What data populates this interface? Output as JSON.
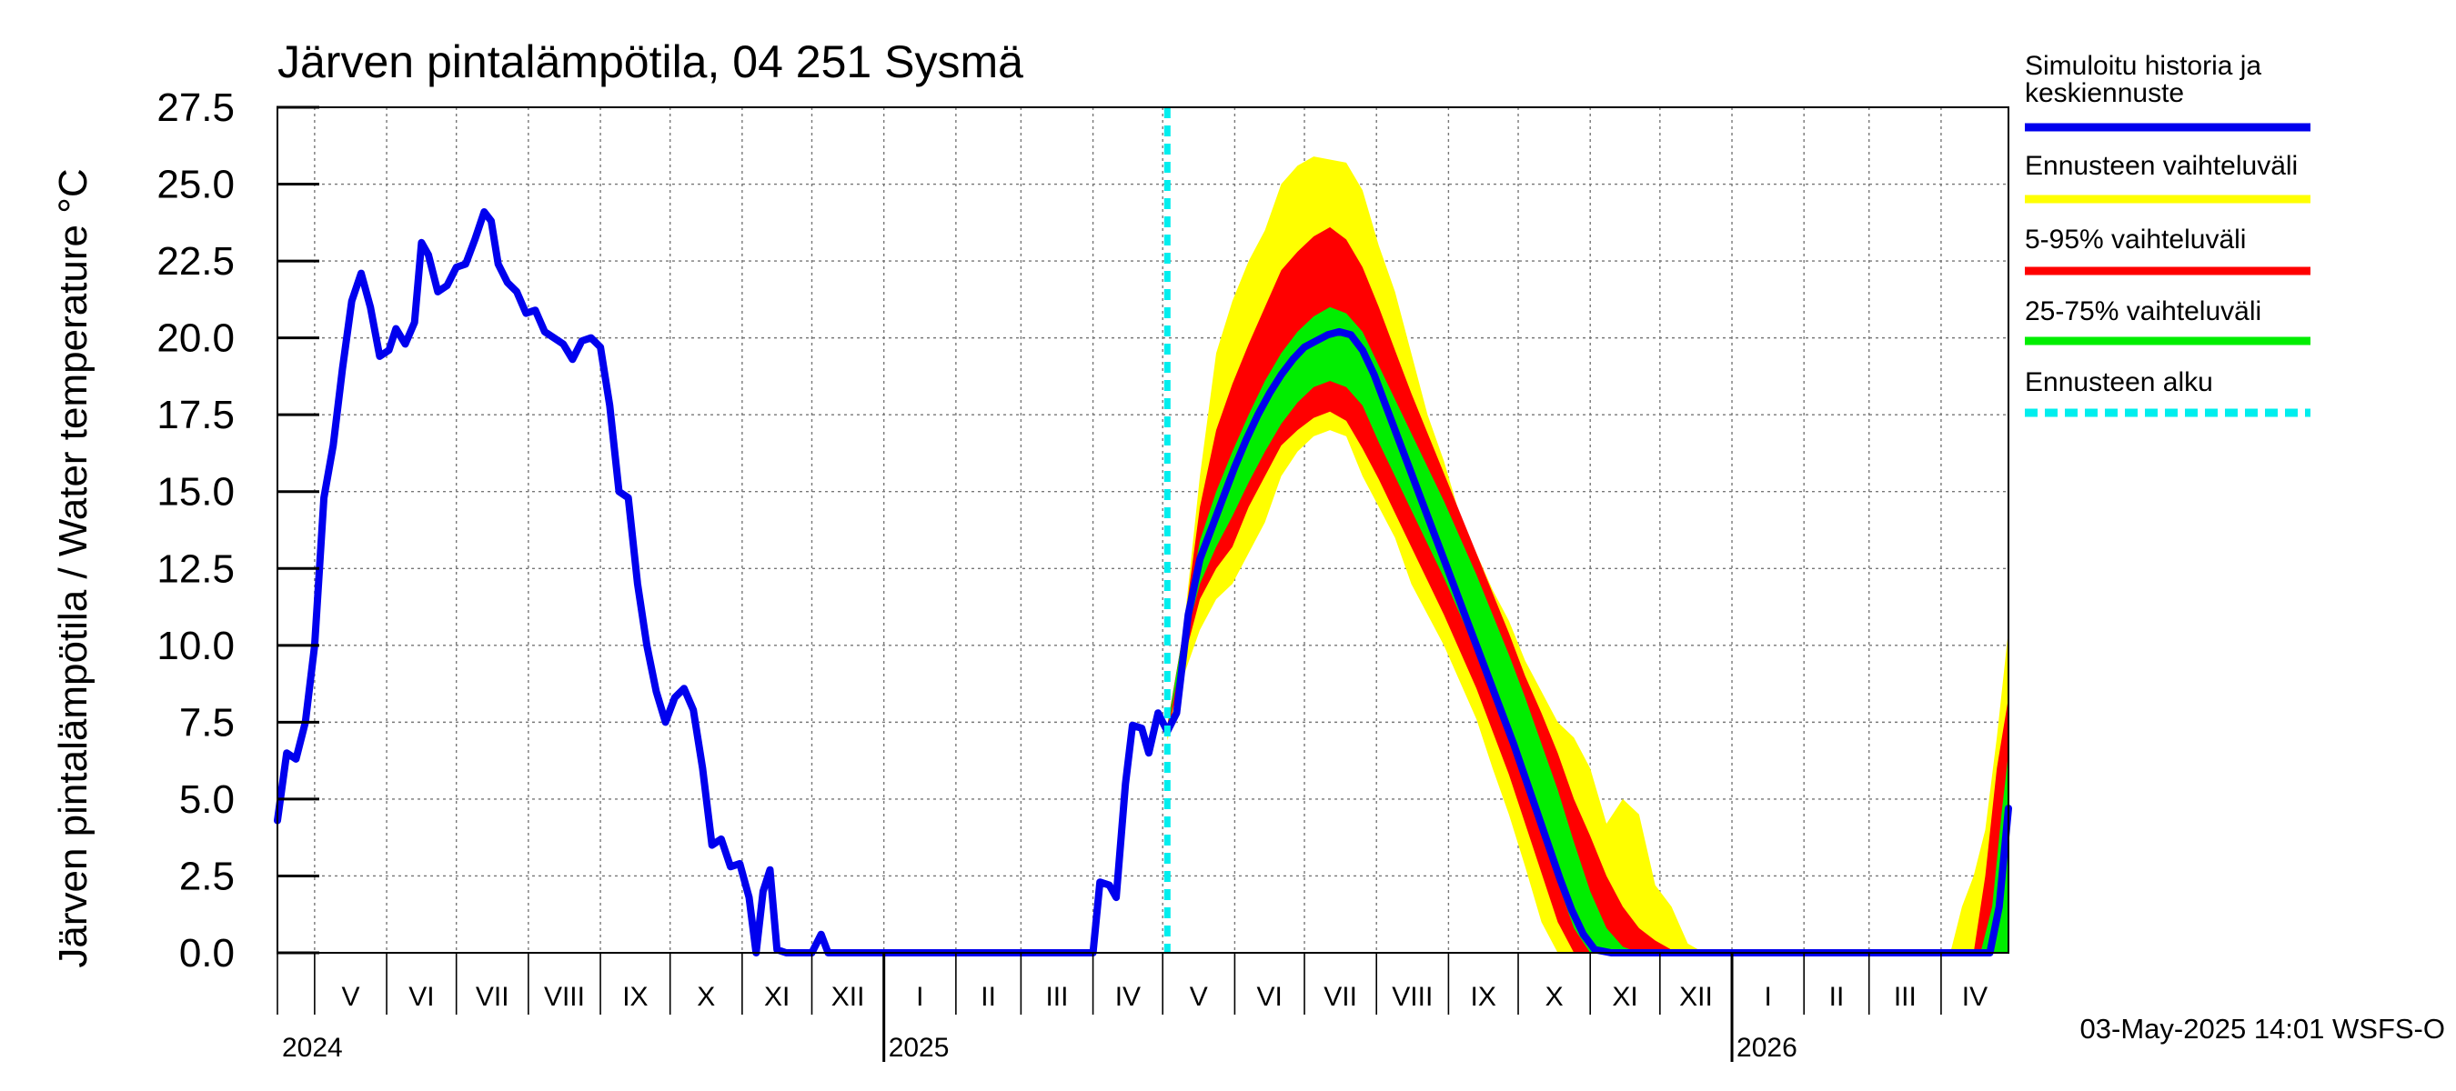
{
  "chart_data": {
    "type": "line",
    "title": "Järven pintalämpötila, 04 251 Sysmä",
    "ylabel": "Järven pintalämpötila / Water temperature °C",
    "xlabel": "",
    "ylim": [
      0,
      27.5
    ],
    "yticks": [
      "0.0",
      "2.5",
      "5.0",
      "7.5",
      "10.0",
      "12.5",
      "15.0",
      "17.5",
      "20.0",
      "22.5",
      "25.0",
      "27.5"
    ],
    "grid": true,
    "legend_position": "right",
    "x_start": "2024-04-15",
    "x_end": "2026-04-30",
    "forecast_start": "2025-05-03",
    "months": [
      "V",
      "VI",
      "VII",
      "VIII",
      "IX",
      "X",
      "XI",
      "XII",
      "I",
      "II",
      "III",
      "IV",
      "V",
      "VI",
      "VII",
      "VIII",
      "IX",
      "X",
      "XI",
      "XII",
      "I",
      "II",
      "III",
      "IV"
    ],
    "years": [
      "2024",
      "2025",
      "2026"
    ],
    "legend": [
      {
        "label": "Simuloitu historia ja keskiennuste",
        "color": "#0000ee",
        "style": "solid"
      },
      {
        "label": "Ennusteen vaihteluväli",
        "color": "#ffff00",
        "style": "solid"
      },
      {
        "label": "5-95% vaihteluväli",
        "color": "#ff0000",
        "style": "solid"
      },
      {
        "label": "25-75% vaihteluväli",
        "color": "#00ee00",
        "style": "solid"
      },
      {
        "label": "Ennusteen alku",
        "color": "#00eeee",
        "style": "dashed"
      }
    ],
    "series": [
      {
        "name": "Simuloitu historia ja keskiennuste",
        "values": [
          [
            "2024-04-15",
            4.3
          ],
          [
            "2024-04-19",
            6.5
          ],
          [
            "2024-04-23",
            6.3
          ],
          [
            "2024-04-27",
            7.5
          ],
          [
            "2024-05-01",
            10.0
          ],
          [
            "2024-05-05",
            14.8
          ],
          [
            "2024-05-09",
            16.5
          ],
          [
            "2024-05-13",
            19.0
          ],
          [
            "2024-05-17",
            21.2
          ],
          [
            "2024-05-21",
            22.1
          ],
          [
            "2024-05-25",
            21.0
          ],
          [
            "2024-05-29",
            19.4
          ],
          [
            "2024-06-02",
            19.6
          ],
          [
            "2024-06-05",
            20.3
          ],
          [
            "2024-06-09",
            19.8
          ],
          [
            "2024-06-13",
            20.5
          ],
          [
            "2024-06-16",
            23.1
          ],
          [
            "2024-06-19",
            22.7
          ],
          [
            "2024-06-23",
            21.5
          ],
          [
            "2024-06-27",
            21.7
          ],
          [
            "2024-07-01",
            22.3
          ],
          [
            "2024-07-05",
            22.4
          ],
          [
            "2024-07-09",
            23.2
          ],
          [
            "2024-07-13",
            24.1
          ],
          [
            "2024-07-16",
            23.8
          ],
          [
            "2024-07-19",
            22.4
          ],
          [
            "2024-07-23",
            21.8
          ],
          [
            "2024-07-27",
            21.5
          ],
          [
            "2024-07-31",
            20.8
          ],
          [
            "2024-08-04",
            20.9
          ],
          [
            "2024-08-08",
            20.2
          ],
          [
            "2024-08-12",
            20.0
          ],
          [
            "2024-08-16",
            19.8
          ],
          [
            "2024-08-20",
            19.3
          ],
          [
            "2024-08-24",
            19.9
          ],
          [
            "2024-08-28",
            20.0
          ],
          [
            "2024-09-01",
            19.7
          ],
          [
            "2024-09-05",
            17.8
          ],
          [
            "2024-09-09",
            15.0
          ],
          [
            "2024-09-13",
            14.8
          ],
          [
            "2024-09-17",
            12.0
          ],
          [
            "2024-09-21",
            10.0
          ],
          [
            "2024-09-25",
            8.5
          ],
          [
            "2024-09-29",
            7.5
          ],
          [
            "2024-10-03",
            8.3
          ],
          [
            "2024-10-07",
            8.6
          ],
          [
            "2024-10-11",
            7.9
          ],
          [
            "2024-10-15",
            6.0
          ],
          [
            "2024-10-19",
            3.5
          ],
          [
            "2024-10-23",
            3.7
          ],
          [
            "2024-10-27",
            2.8
          ],
          [
            "2024-10-31",
            2.9
          ],
          [
            "2024-11-04",
            1.8
          ],
          [
            "2024-11-07",
            0.0
          ],
          [
            "2024-11-10",
            2.0
          ],
          [
            "2024-11-13",
            2.7
          ],
          [
            "2024-11-16",
            0.1
          ],
          [
            "2024-11-20",
            0.0
          ],
          [
            "2024-12-01",
            0.0
          ],
          [
            "2024-12-05",
            0.6
          ],
          [
            "2024-12-08",
            0.0
          ],
          [
            "2025-01-01",
            0.0
          ],
          [
            "2025-04-01",
            0.0
          ],
          [
            "2025-04-04",
            2.3
          ],
          [
            "2025-04-08",
            2.2
          ],
          [
            "2025-04-11",
            1.8
          ],
          [
            "2025-04-15",
            5.5
          ],
          [
            "2025-04-18",
            7.4
          ],
          [
            "2025-04-22",
            7.3
          ],
          [
            "2025-04-25",
            6.5
          ],
          [
            "2025-04-29",
            7.8
          ],
          [
            "2025-05-03",
            7.2
          ],
          [
            "2025-05-07",
            7.8
          ],
          [
            "2025-05-12",
            11.0
          ],
          [
            "2025-05-17",
            12.8
          ],
          [
            "2025-05-22",
            13.8
          ],
          [
            "2025-05-27",
            14.8
          ],
          [
            "2025-06-01",
            15.8
          ],
          [
            "2025-06-06",
            16.7
          ],
          [
            "2025-06-11",
            17.5
          ],
          [
            "2025-06-16",
            18.2
          ],
          [
            "2025-06-21",
            18.8
          ],
          [
            "2025-06-26",
            19.3
          ],
          [
            "2025-07-01",
            19.7
          ],
          [
            "2025-07-06",
            19.9
          ],
          [
            "2025-07-11",
            20.1
          ],
          [
            "2025-07-16",
            20.2
          ],
          [
            "2025-07-21",
            20.1
          ],
          [
            "2025-07-26",
            19.6
          ],
          [
            "2025-07-31",
            18.8
          ],
          [
            "2025-08-05",
            17.8
          ],
          [
            "2025-08-10",
            16.8
          ],
          [
            "2025-08-15",
            15.8
          ],
          [
            "2025-08-20",
            14.8
          ],
          [
            "2025-08-25",
            13.8
          ],
          [
            "2025-08-30",
            12.8
          ],
          [
            "2025-09-04",
            11.8
          ],
          [
            "2025-09-09",
            10.8
          ],
          [
            "2025-09-14",
            9.8
          ],
          [
            "2025-09-19",
            8.8
          ],
          [
            "2025-09-24",
            7.8
          ],
          [
            "2025-09-29",
            6.8
          ],
          [
            "2025-10-04",
            5.7
          ],
          [
            "2025-10-09",
            4.6
          ],
          [
            "2025-10-14",
            3.5
          ],
          [
            "2025-10-19",
            2.4
          ],
          [
            "2025-10-24",
            1.4
          ],
          [
            "2025-10-29",
            0.6
          ],
          [
            "2025-11-03",
            0.1
          ],
          [
            "2025-11-10",
            0.0
          ],
          [
            "2026-04-22",
            0.0
          ],
          [
            "2026-04-26",
            1.5
          ],
          [
            "2026-04-30",
            4.7
          ]
        ]
      },
      {
        "name": "Ennusteen vaihteluväli",
        "band": [
          [
            "2025-05-03",
            6.9,
            7.4
          ],
          [
            "2025-05-10",
            9.0,
            10.5
          ],
          [
            "2025-05-17",
            10.5,
            15.5
          ],
          [
            "2025-05-24",
            11.5,
            19.5
          ],
          [
            "2025-05-31",
            12.0,
            21.2
          ],
          [
            "2025-06-07",
            13.0,
            22.5
          ],
          [
            "2025-06-14",
            14.0,
            23.5
          ],
          [
            "2025-06-21",
            15.5,
            25.0
          ],
          [
            "2025-06-28",
            16.3,
            25.6
          ],
          [
            "2025-07-05",
            16.8,
            25.9
          ],
          [
            "2025-07-12",
            17.0,
            25.8
          ],
          [
            "2025-07-19",
            16.8,
            25.7
          ],
          [
            "2025-07-26",
            15.5,
            24.8
          ],
          [
            "2025-08-02",
            14.5,
            23.0
          ],
          [
            "2025-08-09",
            13.5,
            21.5
          ],
          [
            "2025-08-16",
            12.0,
            19.5
          ],
          [
            "2025-08-23",
            11.0,
            17.5
          ],
          [
            "2025-08-30",
            10.0,
            16.0
          ],
          [
            "2025-09-06",
            8.8,
            14.2
          ],
          [
            "2025-09-13",
            7.6,
            13.0
          ],
          [
            "2025-09-20",
            6.0,
            11.8
          ],
          [
            "2025-09-27",
            4.5,
            10.8
          ],
          [
            "2025-10-04",
            2.8,
            9.5
          ],
          [
            "2025-10-11",
            1.0,
            8.5
          ],
          [
            "2025-10-18",
            0.0,
            7.5
          ],
          [
            "2025-10-25",
            0.0,
            7.0
          ],
          [
            "2025-11-01",
            0.0,
            6.0
          ],
          [
            "2025-11-08",
            0.0,
            4.2
          ],
          [
            "2025-11-15",
            0.0,
            5.0
          ],
          [
            "2025-11-22",
            0.0,
            4.5
          ],
          [
            "2025-11-29",
            0.0,
            2.2
          ],
          [
            "2025-12-06",
            0.0,
            1.5
          ],
          [
            "2025-12-13",
            0.0,
            0.3
          ],
          [
            "2025-12-20",
            0.0,
            0.0
          ],
          [
            "2026-04-05",
            0.0,
            0.0
          ],
          [
            "2026-04-10",
            0.0,
            1.5
          ],
          [
            "2026-04-15",
            0.0,
            2.5
          ],
          [
            "2026-04-20",
            0.0,
            4.0
          ],
          [
            "2026-04-25",
            0.0,
            7.0
          ],
          [
            "2026-04-30",
            0.0,
            10.5
          ]
        ]
      },
      {
        "name": "5-95% vaihteluväli",
        "band": [
          [
            "2025-05-03",
            7.1,
            7.4
          ],
          [
            "2025-05-10",
            9.5,
            10.5
          ],
          [
            "2025-05-17",
            11.5,
            14.5
          ],
          [
            "2025-05-24",
            12.5,
            17.0
          ],
          [
            "2025-05-31",
            13.2,
            18.5
          ],
          [
            "2025-06-07",
            14.5,
            19.8
          ],
          [
            "2025-06-14",
            15.5,
            21.0
          ],
          [
            "2025-06-21",
            16.5,
            22.2
          ],
          [
            "2025-06-28",
            17.0,
            22.8
          ],
          [
            "2025-07-05",
            17.4,
            23.3
          ],
          [
            "2025-07-12",
            17.6,
            23.6
          ],
          [
            "2025-07-19",
            17.3,
            23.2
          ],
          [
            "2025-07-26",
            16.4,
            22.3
          ],
          [
            "2025-08-02",
            15.4,
            21.0
          ],
          [
            "2025-08-09",
            14.3,
            19.6
          ],
          [
            "2025-08-16",
            13.2,
            18.2
          ],
          [
            "2025-08-23",
            12.1,
            16.9
          ],
          [
            "2025-08-30",
            11.0,
            15.6
          ],
          [
            "2025-09-06",
            9.8,
            14.3
          ],
          [
            "2025-09-13",
            8.6,
            13.0
          ],
          [
            "2025-09-20",
            7.2,
            11.7
          ],
          [
            "2025-09-27",
            5.8,
            10.4
          ],
          [
            "2025-10-04",
            4.2,
            9.0
          ],
          [
            "2025-10-11",
            2.6,
            7.8
          ],
          [
            "2025-10-18",
            1.0,
            6.5
          ],
          [
            "2025-10-25",
            0.0,
            5.0
          ],
          [
            "2025-11-01",
            0.0,
            3.8
          ],
          [
            "2025-11-08",
            0.0,
            2.5
          ],
          [
            "2025-11-15",
            0.0,
            1.5
          ],
          [
            "2025-11-22",
            0.0,
            0.8
          ],
          [
            "2025-11-29",
            0.0,
            0.4
          ],
          [
            "2025-12-06",
            0.0,
            0.1
          ],
          [
            "2025-12-13",
            0.0,
            0.0
          ],
          [
            "2026-04-15",
            0.0,
            0.0
          ],
          [
            "2026-04-20",
            0.0,
            2.5
          ],
          [
            "2026-04-25",
            0.0,
            6.0
          ],
          [
            "2026-04-30",
            0.0,
            8.3
          ]
        ]
      },
      {
        "name": "25-75% vaihteluväli",
        "band": [
          [
            "2025-05-03",
            7.2,
            7.3
          ],
          [
            "2025-05-10",
            10.0,
            10.5
          ],
          [
            "2025-05-17",
            12.0,
            13.4
          ],
          [
            "2025-05-24",
            13.2,
            15.0
          ],
          [
            "2025-05-31",
            14.2,
            16.3
          ],
          [
            "2025-06-07",
            15.3,
            17.5
          ],
          [
            "2025-06-14",
            16.3,
            18.6
          ],
          [
            "2025-06-21",
            17.2,
            19.5
          ],
          [
            "2025-06-28",
            17.9,
            20.2
          ],
          [
            "2025-07-05",
            18.4,
            20.7
          ],
          [
            "2025-07-12",
            18.6,
            21.0
          ],
          [
            "2025-07-19",
            18.4,
            20.8
          ],
          [
            "2025-07-26",
            17.8,
            20.2
          ],
          [
            "2025-08-02",
            16.6,
            19.1
          ],
          [
            "2025-08-09",
            15.5,
            18.0
          ],
          [
            "2025-08-16",
            14.4,
            16.9
          ],
          [
            "2025-08-23",
            13.3,
            15.8
          ],
          [
            "2025-08-30",
            12.2,
            14.7
          ],
          [
            "2025-09-06",
            11.0,
            13.5
          ],
          [
            "2025-09-13",
            9.8,
            12.3
          ],
          [
            "2025-09-20",
            8.5,
            11.0
          ],
          [
            "2025-09-27",
            7.2,
            9.7
          ],
          [
            "2025-10-04",
            5.7,
            8.3
          ],
          [
            "2025-10-11",
            4.0,
            6.8
          ],
          [
            "2025-10-18",
            2.3,
            5.3
          ],
          [
            "2025-10-25",
            0.8,
            3.6
          ],
          [
            "2025-11-01",
            0.0,
            2.0
          ],
          [
            "2025-11-08",
            0.0,
            0.8
          ],
          [
            "2025-11-15",
            0.0,
            0.2
          ],
          [
            "2025-11-22",
            0.0,
            0.0
          ],
          [
            "2026-04-18",
            0.0,
            0.0
          ],
          [
            "2026-04-23",
            0.0,
            1.5
          ],
          [
            "2026-04-27",
            0.0,
            4.5
          ],
          [
            "2026-04-30",
            0.0,
            6.5
          ]
        ]
      }
    ]
  },
  "footer": {
    "timestamp": "03-May-2025 14:01 WSFS-O"
  }
}
